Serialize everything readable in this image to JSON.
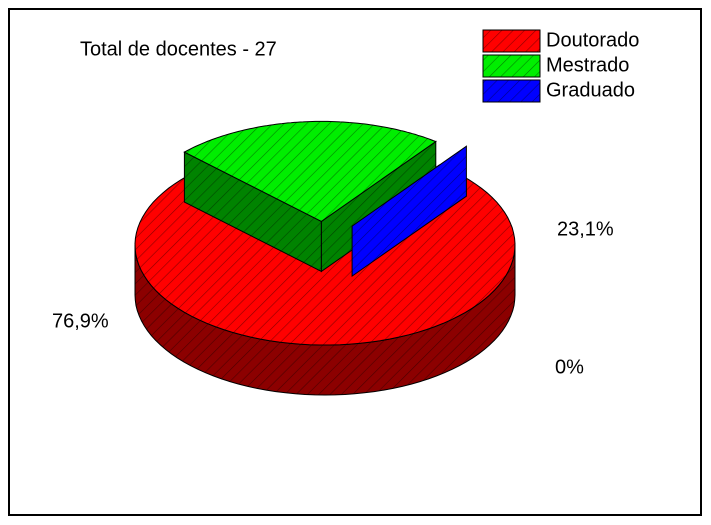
{
  "chart_data": {
    "type": "pie",
    "title": "Total de docentes - 27",
    "categories": [
      "Doutorado",
      "Mestrado",
      "Graduado"
    ],
    "values": [
      76.9,
      23.1,
      0
    ],
    "value_labels": [
      "76,9%",
      "23,1%",
      "0%"
    ],
    "colors": [
      "#ff0000",
      "#00ee00",
      "#0000ff"
    ],
    "legend": "top-right"
  }
}
